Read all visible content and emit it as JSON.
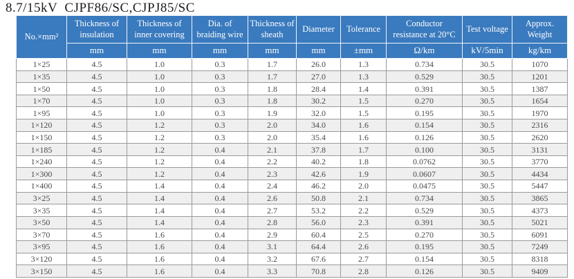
{
  "title": "8.7/15kV  CJPF86/SC,CJPJ85/SC",
  "colors": {
    "header_bg": "#3a7abe",
    "header_text": "#ffffff",
    "row_stripe": "#efefef",
    "grid_line": "#999999",
    "data_text": "#4a4a4a"
  },
  "table": {
    "columns": [
      {
        "label": "No.×mm²",
        "unit": null
      },
      {
        "label": "Thickness of insulation",
        "unit": "mm"
      },
      {
        "label": "Thickness of inner covering",
        "unit": "mm"
      },
      {
        "label": "Dia. of braiding wire",
        "unit": "mm"
      },
      {
        "label": "Thickness of sheath",
        "unit": "mm"
      },
      {
        "label": "Diameter",
        "unit": "mm"
      },
      {
        "label": "Tolerance",
        "unit": "±mm"
      },
      {
        "label": "Conductor resistance at 20°C",
        "unit": "Ω/km"
      },
      {
        "label": "Test voltage",
        "unit": "kV/5min"
      },
      {
        "label": "Approx. Weight",
        "unit": "kg/km"
      }
    ],
    "rows": [
      [
        "1×25",
        "4.5",
        "1.0",
        "0.3",
        "1.7",
        "26.0",
        "1.3",
        "0.734",
        "30.5",
        "1070"
      ],
      [
        "1×35",
        "4.5",
        "1.0",
        "0.3",
        "1.7",
        "27.0",
        "1.3",
        "0.529",
        "30.5",
        "1201"
      ],
      [
        "1×50",
        "4.5",
        "1.0",
        "0.3",
        "1.8",
        "28.4",
        "1.4",
        "0.391",
        "30.5",
        "1387"
      ],
      [
        "1×70",
        "4.5",
        "1.0",
        "0.3",
        "1.8",
        "30.2",
        "1.5",
        "0.270",
        "30.5",
        "1654"
      ],
      [
        "1×95",
        "4.5",
        "1.0",
        "0.3",
        "1.9",
        "32.0",
        "1.5",
        "0.195",
        "30.5",
        "1970"
      ],
      [
        "1×120",
        "4.5",
        "1.2",
        "0.3",
        "2.0",
        "34.0",
        "1.6",
        "0.154",
        "30.5",
        "2316"
      ],
      [
        "1×150",
        "4.5",
        "1.2",
        "0.3",
        "2.0",
        "35.4",
        "1.6",
        "0.126",
        "30.5",
        "2620"
      ],
      [
        "1×185",
        "4.5",
        "1.2",
        "0.4",
        "2.1",
        "37.8",
        "1.7",
        "0.100",
        "30.5",
        "3131"
      ],
      [
        "1×240",
        "4.5",
        "1.2",
        "0.4",
        "2.2",
        "40.2",
        "1.8",
        "0.0762",
        "30.5",
        "3770"
      ],
      [
        "1×300",
        "4.5",
        "1.2",
        "0.4",
        "2.3",
        "42.6",
        "1.9",
        "0.0607",
        "30.5",
        "4434"
      ],
      [
        "1×400",
        "4.5",
        "1.4",
        "0.4",
        "2.4",
        "46.2",
        "2.0",
        "0.0475",
        "30.5",
        "5447"
      ],
      [
        "3×25",
        "4.5",
        "1.4",
        "0.4",
        "2.6",
        "50.8",
        "2.1",
        "0.734",
        "30.5",
        "3865"
      ],
      [
        "3×35",
        "4.5",
        "1.4",
        "0.4",
        "2.7",
        "53.2",
        "2.2",
        "0.529",
        "30.5",
        "4373"
      ],
      [
        "3×50",
        "4.5",
        "1.4",
        "0.4",
        "2.8",
        "56.0",
        "2.3",
        "0.391",
        "30.5",
        "5021"
      ],
      [
        "3×70",
        "4.5",
        "1.6",
        "0.4",
        "2.9",
        "60.4",
        "2.5",
        "0.270",
        "30.5",
        "6091"
      ],
      [
        "3×95",
        "4.5",
        "1.6",
        "0.4",
        "3.1",
        "64.4",
        "2.6",
        "0.195",
        "30.5",
        "7249"
      ],
      [
        "3×120",
        "4.5",
        "1.6",
        "0.4",
        "3.2",
        "67.6",
        "2.7",
        "0.154",
        "30.5",
        "8318"
      ],
      [
        "3×150",
        "4.5",
        "1.6",
        "0.4",
        "3.3",
        "70.8",
        "2.8",
        "0.126",
        "30.5",
        "9409"
      ]
    ]
  }
}
